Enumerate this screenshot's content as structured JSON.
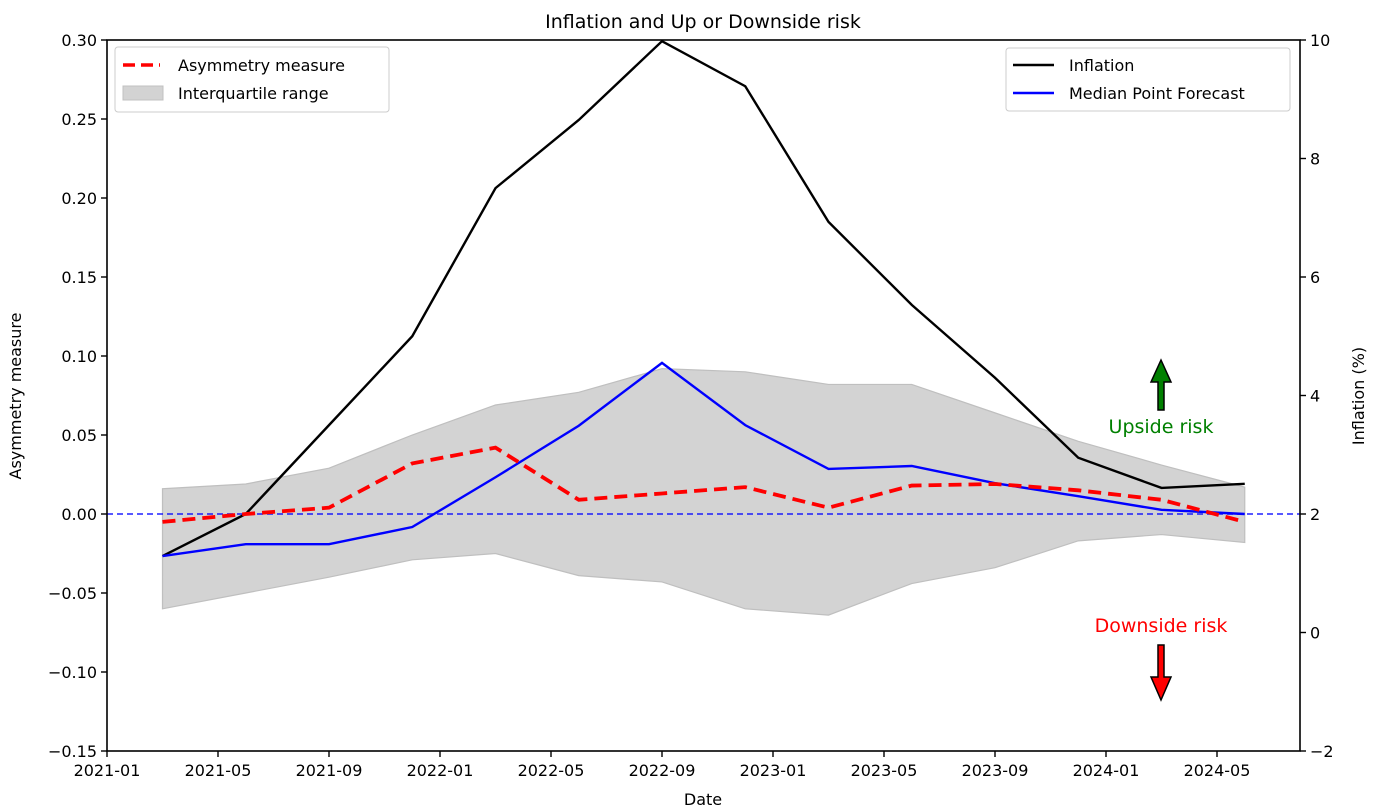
{
  "chart_data": {
    "type": "line",
    "title": "Inflation and Up or Downside risk",
    "xlabel": "Date",
    "ylabel_left": "Asymmetry measure",
    "ylabel_right": "Inflation (%)",
    "x_range": [
      "2021-01",
      "2024-08"
    ],
    "ylim_left": [
      -0.15,
      0.3
    ],
    "ylim_right": [
      -2,
      10
    ],
    "x_ticks": [
      "2021-01",
      "2021-05",
      "2021-09",
      "2022-01",
      "2022-05",
      "2022-09",
      "2023-01",
      "2023-05",
      "2023-09",
      "2024-01",
      "2024-05"
    ],
    "y_ticks_left": [
      "0.30",
      "0.25",
      "0.20",
      "0.15",
      "0.10",
      "0.05",
      "0.00",
      "−0.05",
      "−0.10",
      "−0.15"
    ],
    "y_ticks_left_values": [
      0.3,
      0.25,
      0.2,
      0.15,
      0.1,
      0.05,
      0.0,
      -0.05,
      -0.1,
      -0.15
    ],
    "y_ticks_right": [
      "10",
      "8",
      "6",
      "4",
      "2",
      "0",
      "−2"
    ],
    "y_ticks_right_values": [
      10,
      8,
      6,
      4,
      2,
      0,
      -2
    ],
    "grid": false,
    "x": [
      "2021-03",
      "2021-06",
      "2021-09",
      "2021-12",
      "2022-03",
      "2022-06",
      "2022-09",
      "2022-12",
      "2023-03",
      "2023-06",
      "2023-09",
      "2023-12",
      "2024-03",
      "2024-06"
    ],
    "series": [
      {
        "name": "Asymmetry measure",
        "axis": "left",
        "style": "dashed",
        "color": "#ff0000",
        "values": [
          -0.005,
          0.0,
          0.004,
          0.032,
          0.042,
          0.009,
          0.013,
          0.017,
          0.004,
          0.018,
          0.019,
          0.015,
          0.009,
          -0.005
        ]
      },
      {
        "name": "Interquartile range",
        "axis": "left",
        "style": "band",
        "color": "#d3d3d3",
        "upper": [
          0.016,
          0.019,
          0.029,
          0.05,
          0.069,
          0.077,
          0.092,
          0.09,
          0.082,
          0.082,
          0.064,
          0.046,
          0.031,
          0.017
        ],
        "lower": [
          -0.06,
          -0.05,
          -0.04,
          -0.029,
          -0.025,
          -0.039,
          -0.043,
          -0.06,
          -0.064,
          -0.044,
          -0.034,
          -0.017,
          -0.013,
          -0.018
        ]
      },
      {
        "name": "Inflation",
        "axis": "right",
        "style": "solid",
        "color": "#000000",
        "values": [
          1.29,
          2.0,
          3.5,
          5.0,
          7.5,
          8.65,
          9.98,
          9.22,
          6.93,
          5.53,
          4.3,
          2.95,
          2.44,
          2.51
        ]
      },
      {
        "name": "Median Point Forecast",
        "axis": "right",
        "style": "solid",
        "color": "#0000ff",
        "values": [
          1.29,
          1.49,
          1.49,
          1.78,
          2.62,
          3.49,
          4.55,
          3.5,
          2.76,
          2.81,
          2.52,
          2.3,
          2.07,
          2.0
        ]
      }
    ],
    "reference_line": {
      "axis": "left",
      "value": 0.0,
      "style": "dashed",
      "color": "#0000ff"
    },
    "legends": [
      {
        "placement": "top-left",
        "entries": [
          "Asymmetry measure",
          "Interquartile range"
        ]
      },
      {
        "placement": "top-right",
        "entries": [
          "Inflation",
          "Median Point Forecast"
        ]
      }
    ],
    "annotations": [
      {
        "text": "Upside risk",
        "color": "#008000",
        "arrow": "up",
        "x": "2024-03",
        "y_left": 0.055
      },
      {
        "text": "Downside risk",
        "color": "#ff0000",
        "arrow": "down",
        "x": "2024-03",
        "y_left": -0.07
      }
    ]
  }
}
